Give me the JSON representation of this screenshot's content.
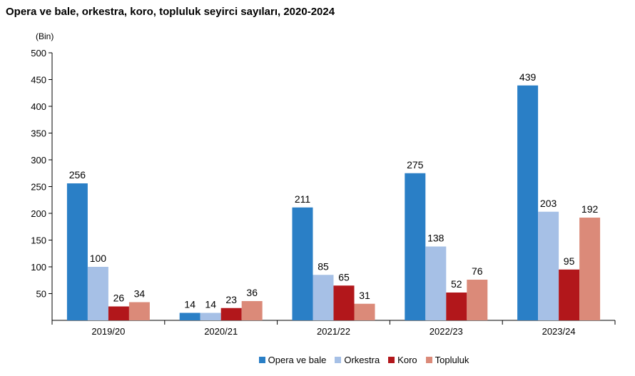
{
  "chart_data": {
    "type": "bar",
    "title": "Opera ve bale, orkestra, koro, topluluk seyirci sayıları, 2020-2024",
    "unit_label": "(Bin)",
    "categories": [
      "2019/20",
      "2020/21",
      "2021/22",
      "2022/23",
      "2023/24"
    ],
    "ylim": [
      0,
      500
    ],
    "yticks": [
      50,
      100,
      150,
      200,
      250,
      300,
      350,
      400,
      450,
      500
    ],
    "series": [
      {
        "name": "Opera ve bale",
        "color": "#2a7fc6",
        "values": [
          256,
          14,
          211,
          275,
          439
        ]
      },
      {
        "name": "Orkestra",
        "color": "#a6c0e6",
        "values": [
          100,
          14,
          85,
          138,
          203
        ]
      },
      {
        "name": "Koro",
        "color": "#b2171b",
        "values": [
          26,
          23,
          65,
          52,
          95
        ]
      },
      {
        "name": "Topluluk",
        "color": "#db8a79",
        "values": [
          34,
          36,
          31,
          76,
          192
        ]
      }
    ],
    "legend_position": "bottom"
  }
}
